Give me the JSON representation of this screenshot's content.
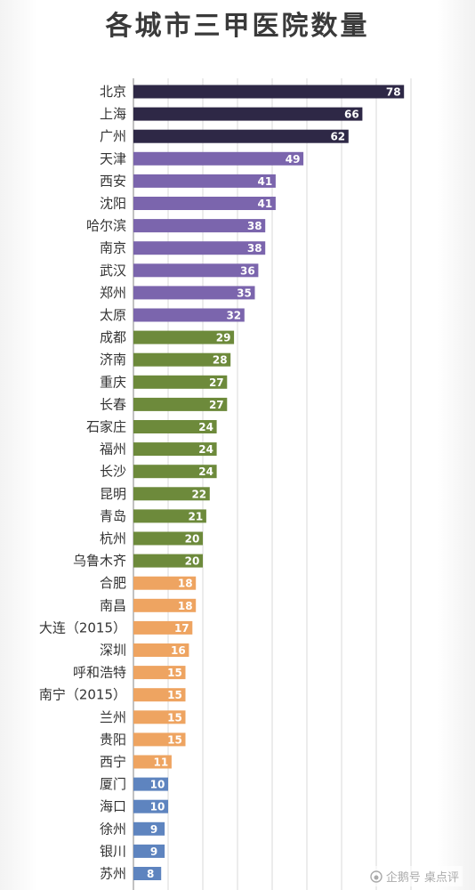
{
  "chart_data": {
    "type": "bar",
    "orientation": "horizontal",
    "title": "各城市三甲医院数量",
    "categories": [
      "北京",
      "上海",
      "广州",
      "天津",
      "西安",
      "沈阳",
      "哈尔滨",
      "南京",
      "武汉",
      "郑州",
      "太原",
      "成都",
      "济南",
      "重庆",
      "长春",
      "石家庄",
      "福州",
      "长沙",
      "昆明",
      "青岛",
      "杭州",
      "乌鲁木齐",
      "合肥",
      "南昌",
      "大连（2015）",
      "深圳",
      "呼和浩特",
      "南宁（2015）",
      "兰州",
      "贵阳",
      "西宁",
      "厦门",
      "海口",
      "徐州",
      "银川",
      "苏州"
    ],
    "values": [
      78,
      66,
      62,
      49,
      41,
      41,
      38,
      38,
      36,
      35,
      32,
      29,
      28,
      27,
      27,
      24,
      24,
      24,
      22,
      21,
      20,
      20,
      18,
      18,
      17,
      16,
      15,
      15,
      15,
      15,
      11,
      10,
      10,
      9,
      9,
      8
    ],
    "colors": [
      "#2e2846",
      "#2e2846",
      "#2e2846",
      "#7b65ad",
      "#7b65ad",
      "#7b65ad",
      "#7b65ad",
      "#7b65ad",
      "#7b65ad",
      "#7b65ad",
      "#7b65ad",
      "#6d8a3b",
      "#6d8a3b",
      "#6d8a3b",
      "#6d8a3b",
      "#6d8a3b",
      "#6d8a3b",
      "#6d8a3b",
      "#6d8a3b",
      "#6d8a3b",
      "#6d8a3b",
      "#6d8a3b",
      "#eea461",
      "#eea461",
      "#eea461",
      "#eea461",
      "#eea461",
      "#eea461",
      "#eea461",
      "#eea461",
      "#eea461",
      "#5e84bf",
      "#5e84bf",
      "#5e84bf",
      "#5e84bf",
      "#5e84bf"
    ],
    "xlim": [
      0,
      80
    ],
    "grid": true,
    "data_labels": true
  },
  "watermark": {
    "text": "企鹅号 桌点评"
  }
}
